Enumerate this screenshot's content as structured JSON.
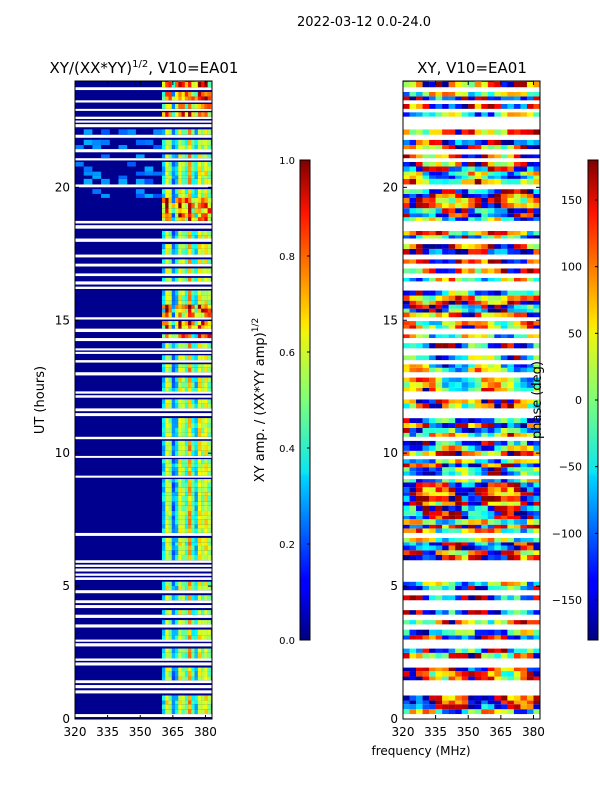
{
  "suptitle": "2022-03-12 0.0-24.0",
  "xlabel_shared": "frequency (MHz)",
  "colors": {
    "frame": "#000000",
    "gap": "#ffffff",
    "background_low": "#00008f"
  },
  "chart_data": [
    {
      "id": "amp",
      "type": "heatmap",
      "title_main": "XY/(XX*YY)",
      "title_sup": "1/2",
      "title_tail": ", V10=EA01",
      "ylabel": "UT (hours)",
      "xlim": [
        320,
        383
      ],
      "ylim": [
        0,
        24
      ],
      "xticks": [
        320,
        335,
        350,
        365,
        380
      ],
      "yticks": [
        0,
        5,
        10,
        15,
        20
      ],
      "colorbar": {
        "label_main": "XY amp. / (XX*YY amp)",
        "label_sup": "1/2",
        "range": [
          0.0,
          1.0
        ],
        "ticks": [
          "0.0",
          "0.2",
          "0.4",
          "0.6",
          "0.8",
          "1.0"
        ],
        "tick_values": [
          0.0,
          0.2,
          0.4,
          0.6,
          0.8,
          1.0
        ],
        "colormap": "jet"
      },
      "active_band_mhz": [
        360,
        383
      ],
      "band_strength_peaks_mhz": [
        362,
        368,
        372,
        377,
        380
      ]
    },
    {
      "id": "phase",
      "type": "heatmap",
      "title": "XY, V10=EA01",
      "xlabel": "frequency (MHz)",
      "xlim": [
        320,
        383
      ],
      "ylim": [
        0,
        24
      ],
      "xticks": [
        320,
        335,
        350,
        365,
        380
      ],
      "yticks": [
        0,
        5,
        10,
        15,
        20
      ],
      "colorbar": {
        "label": "phase (deg)",
        "range": [
          -180,
          180
        ],
        "ticks": [
          "-150",
          "-100",
          "-50",
          "0",
          "50",
          "100",
          "150"
        ],
        "tick_values": [
          -150,
          -100,
          -50,
          0,
          50,
          100,
          150
        ],
        "colormap": "jet"
      }
    }
  ]
}
